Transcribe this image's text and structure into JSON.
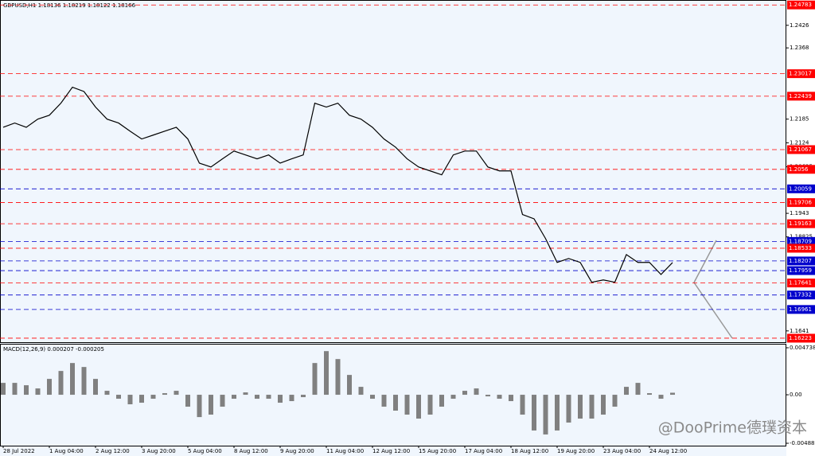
{
  "chart_data": [
    {
      "type": "line",
      "title": "GBPUSD,H1  1.18136 1.18219 1.18122 1.18166",
      "color": "#000000",
      "categories": [
        "28 Jul 2022",
        null,
        null,
        null,
        "1 Aug 04:00",
        null,
        null,
        null,
        "2 Aug 12:00",
        null,
        null,
        null,
        "3 Aug 20:00",
        null,
        null,
        null,
        "5 Aug 04:00",
        null,
        null,
        null,
        "8 Aug 12:00",
        null,
        null,
        null,
        "9 Aug 20:00",
        null,
        null,
        null,
        "11 Aug 04:00",
        null,
        null,
        null,
        "12 Aug 12:00",
        null,
        null,
        null,
        "15 Aug 20:00",
        null,
        null,
        null,
        "17 Aug 04:00",
        null,
        null,
        null,
        "18 Aug 12:00",
        null,
        null,
        null,
        "19 Aug 20:00",
        null,
        null,
        null,
        "23 Aug 04:00",
        null,
        null,
        null,
        "24 Aug 12:00",
        null,
        null
      ],
      "values": [
        1.2164,
        1.2175,
        1.2164,
        1.2185,
        1.2195,
        1.2226,
        1.2267,
        1.2256,
        1.2216,
        1.2185,
        1.2175,
        1.2154,
        1.2134,
        1.2144,
        1.2154,
        1.2164,
        1.2134,
        1.2072,
        1.2062,
        1.2083,
        1.2103,
        1.2093,
        1.2083,
        1.2093,
        1.2072,
        1.2083,
        1.2093,
        1.2226,
        1.2216,
        1.2226,
        1.2195,
        1.2185,
        1.2164,
        1.2134,
        1.2113,
        1.2083,
        1.2062,
        1.2052,
        1.2042,
        1.2093,
        1.2103,
        1.2103,
        1.2062,
        1.2052,
        1.2052,
        1.194,
        1.1929,
        1.1878,
        1.1817,
        1.1827,
        1.1817,
        1.1766,
        1.1772,
        1.1766,
        1.1837,
        1.1817,
        1.1817,
        1.1786,
        1.18166
      ],
      "ylim": [
        1.1612,
        1.2491
      ],
      "yticks": [
        1.2426,
        1.2368,
        1.2185,
        1.2124,
        1.20625,
        1.1943,
        1.18825,
        1.1641
      ],
      "levels": [
        {
          "value": 1.24783,
          "color": "#ff0000"
        },
        {
          "value": 1.23017,
          "color": "#ff0000"
        },
        {
          "value": 1.22439,
          "color": "#ff0000"
        },
        {
          "value": 1.21067,
          "color": "#ff0000"
        },
        {
          "value": 1.2056,
          "color": "#ff0000"
        },
        {
          "value": 1.20059,
          "color": "#0000cc"
        },
        {
          "value": 1.19706,
          "color": "#ff0000"
        },
        {
          "value": 1.19163,
          "color": "#ff0000"
        },
        {
          "value": 1.18709,
          "color": "#0000cc"
        },
        {
          "value": 1.18533,
          "color": "#ff0000"
        },
        {
          "value": 1.18207,
          "color": "#0000cc"
        },
        {
          "value": 1.17959,
          "color": "#0000cc"
        },
        {
          "value": 1.17641,
          "color": "#ff0000"
        },
        {
          "value": 1.17332,
          "color": "#0000cc"
        },
        {
          "value": 1.16961,
          "color": "#0000cc"
        },
        {
          "value": 1.16223,
          "color": "#ff0000"
        }
      ]
    },
    {
      "type": "bar",
      "title": "MACD(12,26,9) 0.000207 -0.000205",
      "color": "#808080",
      "values": [
        0.0012,
        0.0012,
        0.00096,
        0.00064,
        0.0016,
        0.0024,
        0.0032,
        0.0028,
        0.0016,
        0.0004,
        -0.0004,
        -0.00096,
        -0.0008,
        -0.0004,
        0.00016,
        0.0004,
        -0.0012,
        -0.00225,
        -0.002,
        -0.0012,
        -0.0004,
        0.00024,
        -0.0004,
        -0.0004,
        -0.0008,
        -0.00064,
        -0.00024,
        0.0032,
        0.0044,
        0.0036,
        0.002,
        0.0008,
        -0.0004,
        -0.0012,
        -0.0016,
        -0.002,
        -0.0024,
        -0.002,
        -0.0012,
        -0.0004,
        0.0004,
        0.00064,
        -0.00016,
        -0.0004,
        -0.00064,
        -0.002,
        -0.0036,
        -0.004,
        -0.0036,
        -0.0028,
        -0.0024,
        -0.0024,
        -0.002,
        -0.0012,
        0.0008,
        0.0012,
        0.00016,
        -0.0004,
        0.000207
      ],
      "ylim": [
        -0.005129,
        0.005138
      ],
      "yticks": [
        0.004738,
        {
          "value": 0,
          "label": "0.00"
        },
        -0.004889
      ]
    }
  ],
  "watermark": "@DooPrime德璞资本"
}
